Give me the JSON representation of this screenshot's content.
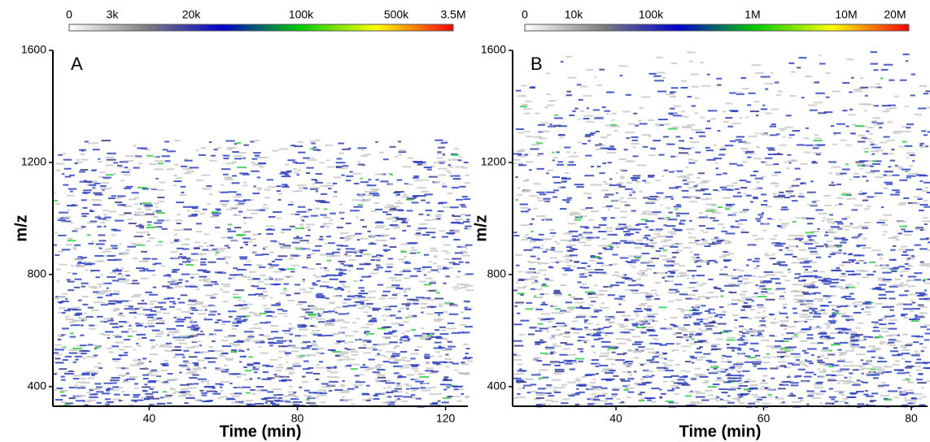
{
  "chart_data": [
    {
      "type": "heatmap",
      "panel_label": "A",
      "xlabel": "Time (min)",
      "ylabel": "m/z",
      "xlim": [
        14,
        126
      ],
      "ylim": [
        330,
        1600
      ],
      "xticks": [
        40,
        80,
        120
      ],
      "yticks": [
        400,
        800,
        1200,
        1600
      ],
      "colorbar": {
        "colors": [
          "#ffffff",
          "#808080",
          "#0000cc",
          "#00cc00",
          "#ffff00",
          "#ff0000"
        ],
        "ticks": [
          0,
          {
            "value": 3000,
            "label": "3k"
          },
          {
            "value": 20000,
            "label": "20k"
          },
          {
            "value": 100000,
            "label": "100k"
          },
          {
            "value": 500000,
            "label": "500k"
          },
          {
            "value": 3500000,
            "label": "3.5M"
          }
        ]
      }
    },
    {
      "type": "heatmap",
      "panel_label": "B",
      "xlabel": "Time (min)",
      "ylabel": "m/z",
      "xlim": [
        26,
        82.2
      ],
      "ylim": [
        330,
        1600
      ],
      "xticks": [
        40,
        60,
        80
      ],
      "yticks": [
        400,
        800,
        1200,
        1600
      ],
      "colorbar": {
        "colors": [
          "#ffffff",
          "#808080",
          "#0000cc",
          "#00cc00",
          "#ffff00",
          "#ff0000"
        ],
        "ticks": [
          0,
          {
            "value": 10000,
            "label": "10k"
          },
          {
            "value": 100000,
            "label": "100k"
          },
          {
            "value": 1000000,
            "label": "1M"
          },
          {
            "value": 10000000,
            "label": "10M"
          },
          {
            "value": 20000000,
            "label": "20M"
          }
        ]
      }
    }
  ]
}
